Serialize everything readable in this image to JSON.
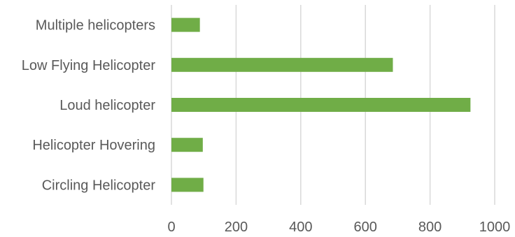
{
  "chart_data": {
    "type": "bar",
    "orientation": "horizontal",
    "categories": [
      "Multiple helicopters",
      "Low Flying Helicopter",
      "Loud helicopter",
      "Helicopter Hovering",
      "Circling Helicopter"
    ],
    "values": [
      88,
      685,
      925,
      97,
      99
    ],
    "xlim": [
      0,
      1000
    ],
    "xticks": [
      "0",
      "200",
      "400",
      "600",
      "800",
      "1000"
    ],
    "title": "",
    "xlabel": "",
    "ylabel": "",
    "grid": "vertical",
    "legend": "none",
    "bar_color": "#70ad47",
    "grid_color": "#d9d9d9"
  }
}
